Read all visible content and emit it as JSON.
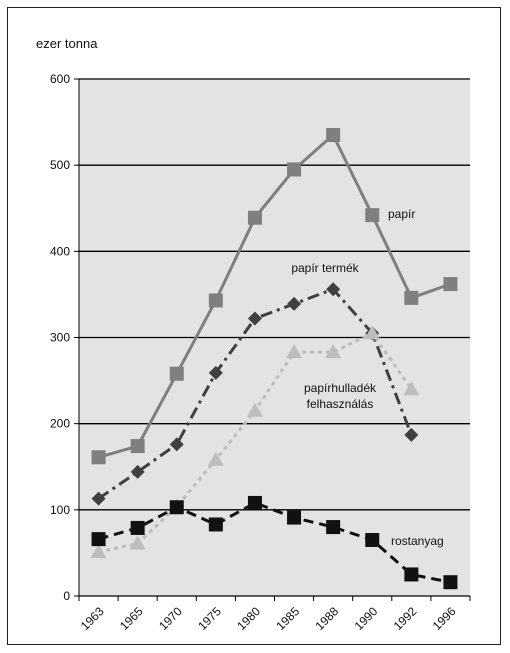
{
  "chart_data": {
    "type": "line",
    "categories": [
      "1963",
      "1965",
      "1970",
      "1975",
      "1980",
      "1985",
      "1988",
      "1990",
      "1992",
      "1996"
    ],
    "ylabel": "ezer tonna",
    "ylim": [
      0,
      600
    ],
    "yticks": [
      0,
      100,
      200,
      300,
      400,
      500,
      600
    ],
    "grid": true,
    "series": [
      {
        "name": "papír",
        "values": [
          161,
          174,
          258,
          343,
          439,
          495,
          535,
          442,
          346,
          362
        ],
        "color": "#7f7f7f",
        "marker": "square",
        "line_style": "solid"
      },
      {
        "name": "papír termék",
        "values": [
          113,
          144,
          176,
          259,
          322,
          339,
          356,
          305,
          187,
          null
        ],
        "color": "#404040",
        "marker": "diamond",
        "line_style": "dash-dot"
      },
      {
        "name": "papírhulladék felhasználás",
        "values": [
          51,
          61,
          104,
          158,
          215,
          283,
          283,
          305,
          240,
          null
        ],
        "color": "#bdbdbd",
        "marker": "triangle",
        "line_style": "dotted"
      },
      {
        "name": "rostanyag",
        "values": [
          66,
          79,
          103,
          83,
          108,
          91,
          80,
          65,
          25,
          16
        ],
        "color": "#111111",
        "marker": "square",
        "line_style": "dashed"
      }
    ]
  }
}
